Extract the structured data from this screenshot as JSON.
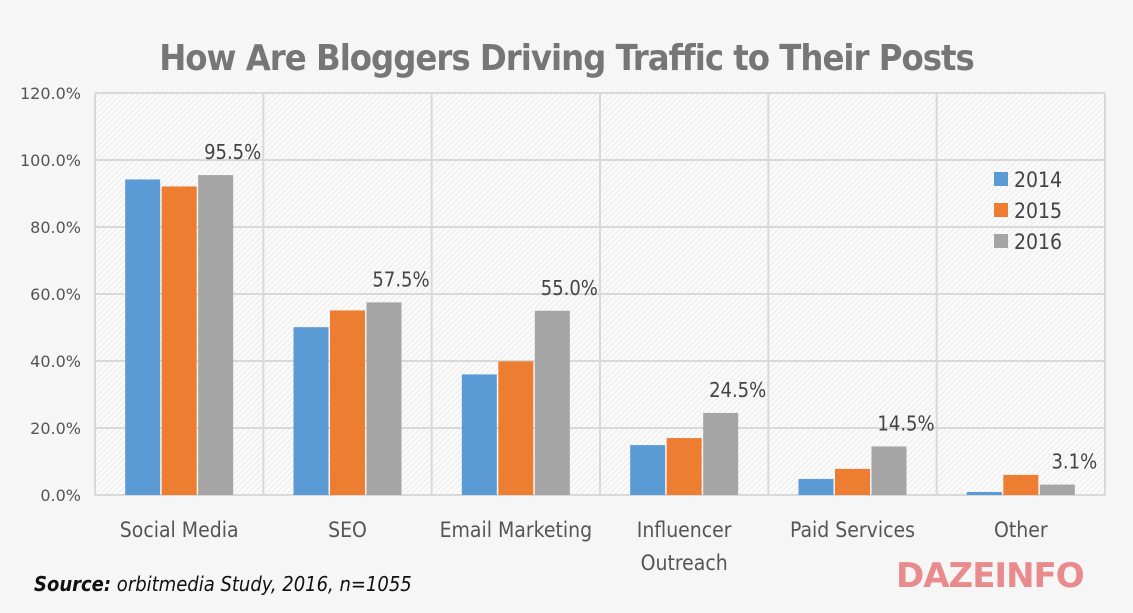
{
  "chart_data": {
    "type": "bar",
    "title": "How Are Bloggers Driving Traffic to Their Posts",
    "categories": [
      "Social Media",
      "SEO",
      "Email Marketing",
      "Influencer Outreach",
      "Paid Services",
      "Other"
    ],
    "category_lines": [
      [
        "Social Media"
      ],
      [
        "SEO"
      ],
      [
        "Email Marketing"
      ],
      [
        "Influencer",
        "Outreach"
      ],
      [
        "Paid Services"
      ],
      [
        "Other"
      ]
    ],
    "series": [
      {
        "name": "2014",
        "color": "#5b9bd5",
        "values": [
          94.2,
          50.1,
          36.0,
          14.9,
          4.8,
          0.9
        ]
      },
      {
        "name": "2015",
        "color": "#ed7d31",
        "values": [
          92.1,
          55.1,
          39.9,
          17.0,
          7.8,
          6.0
        ]
      },
      {
        "name": "2016",
        "color": "#a5a5a5",
        "values": [
          95.5,
          57.5,
          55.0,
          24.5,
          14.5,
          3.1
        ]
      }
    ],
    "data_labels": {
      "series": "2016",
      "labels": [
        "95.5%",
        "57.5%",
        "55.0%",
        "24.5%",
        "14.5%",
        "3.1%"
      ]
    },
    "ylim": [
      0,
      120
    ],
    "yticks": [
      0,
      20,
      40,
      60,
      80,
      100,
      120
    ],
    "ytick_labels": [
      "0.0%",
      "20.0%",
      "40.0%",
      "60.0%",
      "80.0%",
      "100.0%",
      "120.0%"
    ],
    "grid": true,
    "legend_placement": "right"
  },
  "source": {
    "label": "Source:",
    "text": " orbitmedia Study, 2016, n=1055"
  },
  "logo": "DAZEINFO"
}
